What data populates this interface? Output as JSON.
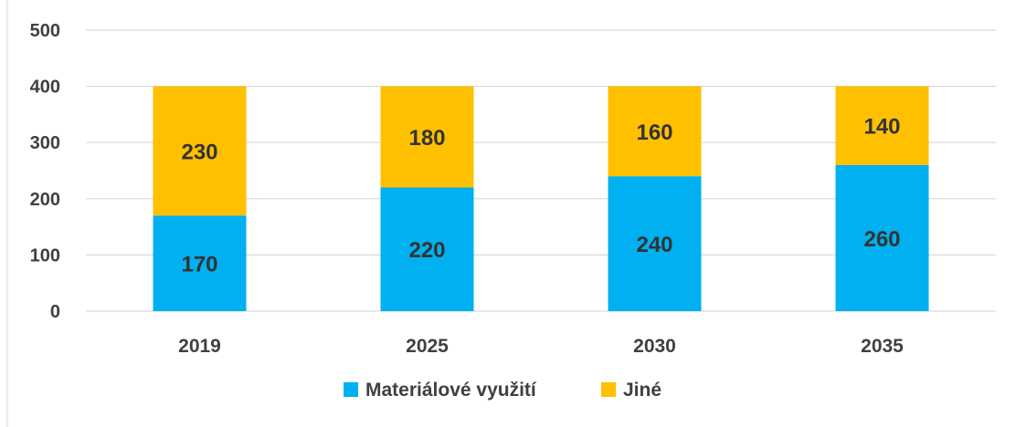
{
  "chart_data": {
    "type": "bar",
    "stacked": true,
    "categories": [
      "2019",
      "2025",
      "2030",
      "2035"
    ],
    "series": [
      {
        "name": "Materiálové využití",
        "values": [
          170,
          220,
          240,
          260
        ],
        "color": "#00B0F0"
      },
      {
        "name": "Jiné",
        "values": [
          230,
          180,
          160,
          140
        ],
        "color": "#FFC000"
      }
    ],
    "ylim": [
      0,
      500
    ],
    "yticks": [
      0,
      100,
      200,
      300,
      400,
      500
    ],
    "grid": true,
    "legend": "bottom"
  }
}
